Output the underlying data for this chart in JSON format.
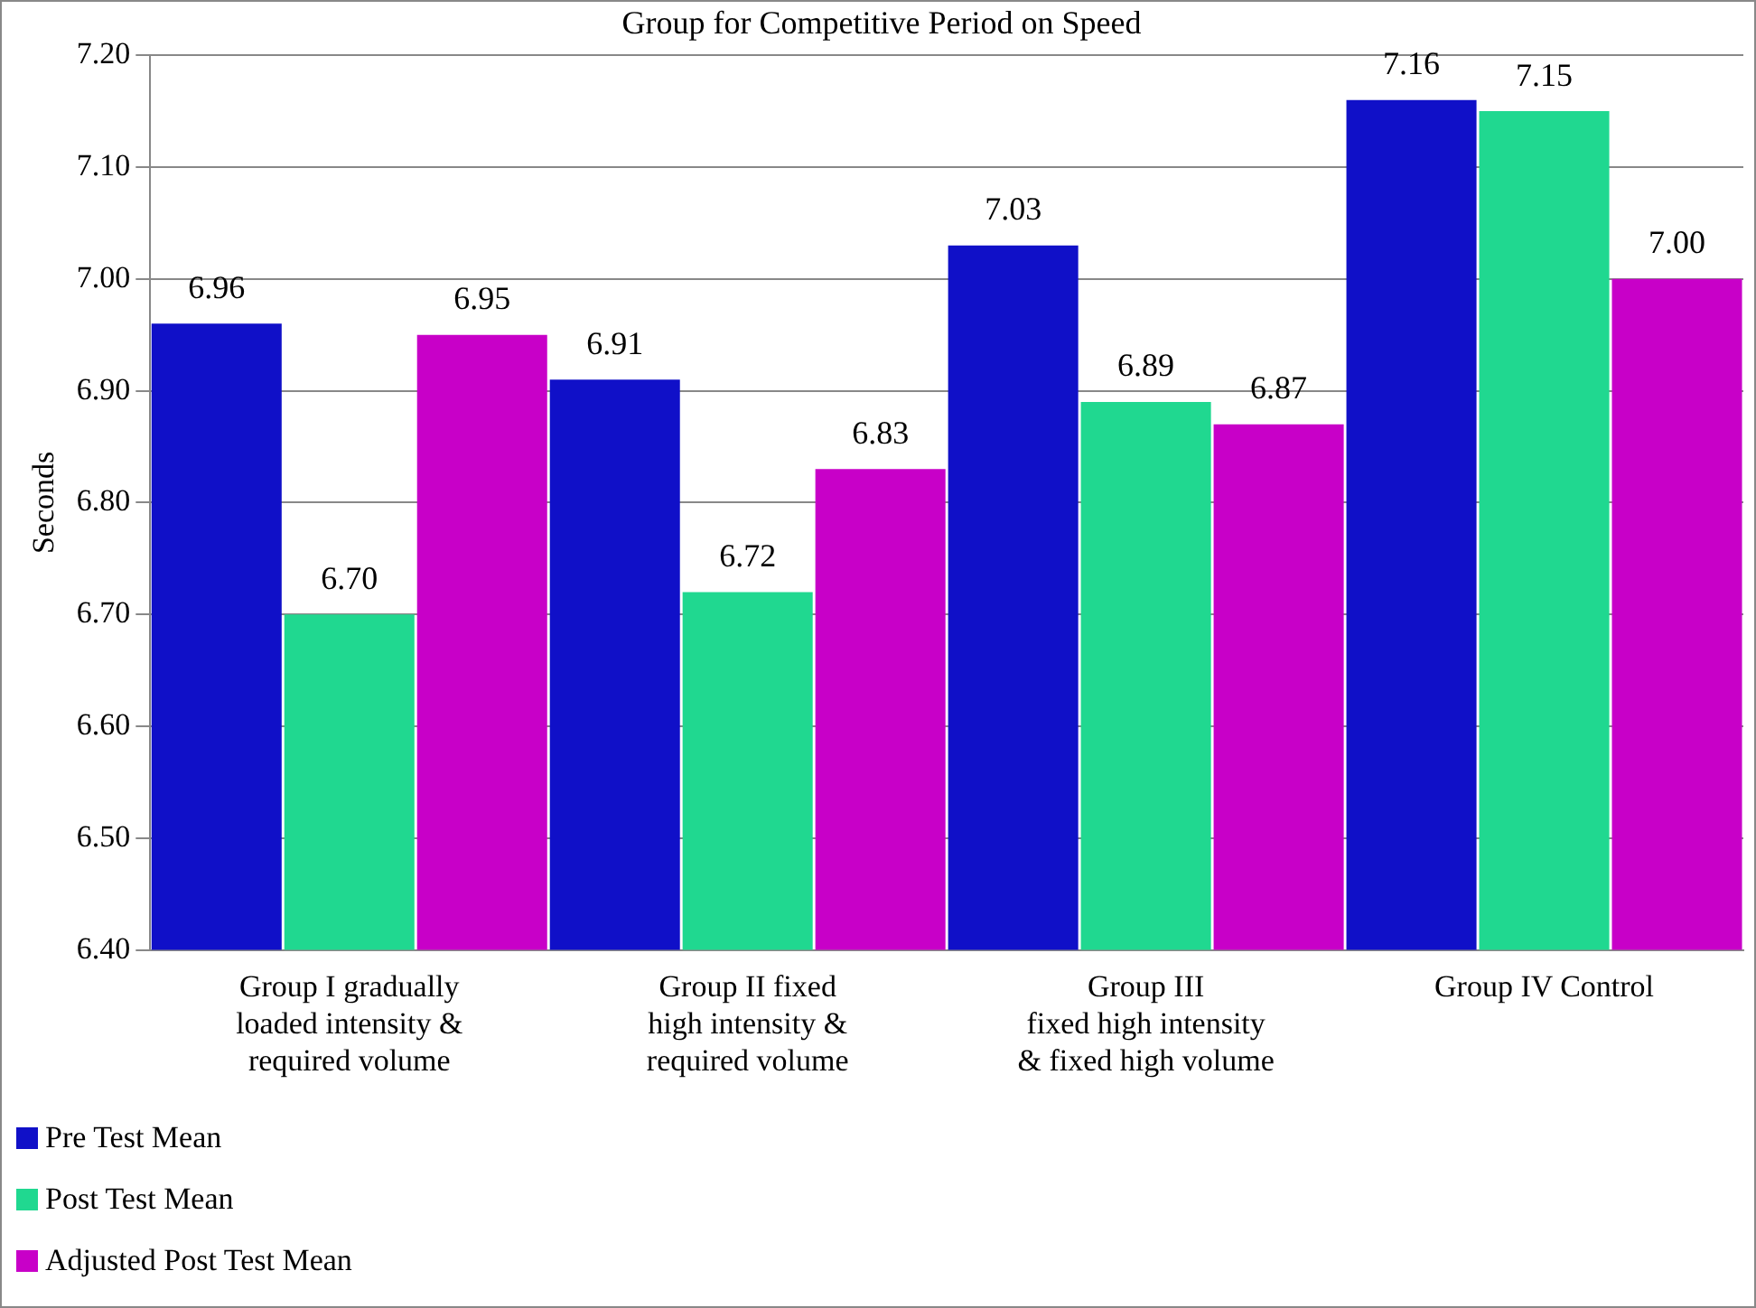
{
  "chart_data": {
    "type": "bar",
    "title": "Group for Competitive Period on Speed",
    "ylabel": "Seconds",
    "categories": [
      "Group I gradually\nloaded intensity &\nrequired volume",
      "Group II fixed\nhigh intensity &\nrequired volume",
      "Group III\nfixed high intensity\n& fixed high volume",
      "Group IV Control"
    ],
    "series": [
      {
        "name": "Pre Test Mean",
        "color": "#1010c8",
        "values": [
          6.96,
          6.91,
          7.03,
          7.16
        ],
        "value_labels": [
          "6.96",
          "6.91",
          "7.03",
          "7.16"
        ]
      },
      {
        "name": "Post Test Mean",
        "color": "#20d890",
        "values": [
          6.7,
          6.72,
          6.89,
          7.15
        ],
        "value_labels": [
          "6.70",
          "6.72",
          "6.89",
          "7.15"
        ]
      },
      {
        "name": "Adjusted Post Test Mean",
        "color": "#c800c8",
        "values": [
          6.95,
          6.83,
          6.87,
          7.0
        ],
        "value_labels": [
          "6.95",
          "6.83",
          "6.87",
          "7.00"
        ]
      }
    ],
    "ylim": [
      6.4,
      7.2
    ],
    "yticks": [
      {
        "value": 6.4,
        "label": "6.40"
      },
      {
        "value": 6.5,
        "label": "6.50"
      },
      {
        "value": 6.6,
        "label": "6.60"
      },
      {
        "value": 6.7,
        "label": "6.70"
      },
      {
        "value": 6.8,
        "label": "6.80"
      },
      {
        "value": 6.9,
        "label": "6.90"
      },
      {
        "value": 7.0,
        "label": "7.00"
      },
      {
        "value": 7.1,
        "label": "7.10"
      },
      {
        "value": 7.2,
        "label": "7.20"
      }
    ],
    "grid": "y",
    "legend": "bottom left"
  }
}
